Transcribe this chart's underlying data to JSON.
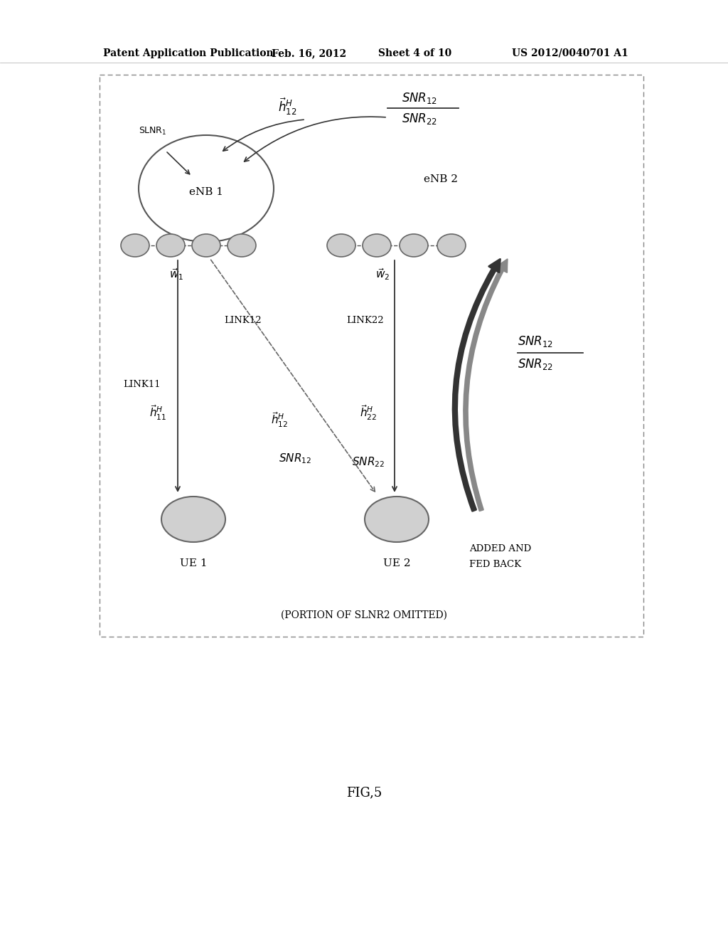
{
  "bg_color": "#ffffff",
  "header_text": "Patent Application Publication",
  "header_date": "Feb. 16, 2012",
  "header_sheet": "Sheet 4 of 10",
  "header_patent": "US 2012/0040701 A1",
  "fig_label": "FIG,5",
  "node_fill": "#c8c8c8",
  "node_edge": "#666666",
  "arrow_color": "#333333",
  "thick_arrow_color": "#333333"
}
